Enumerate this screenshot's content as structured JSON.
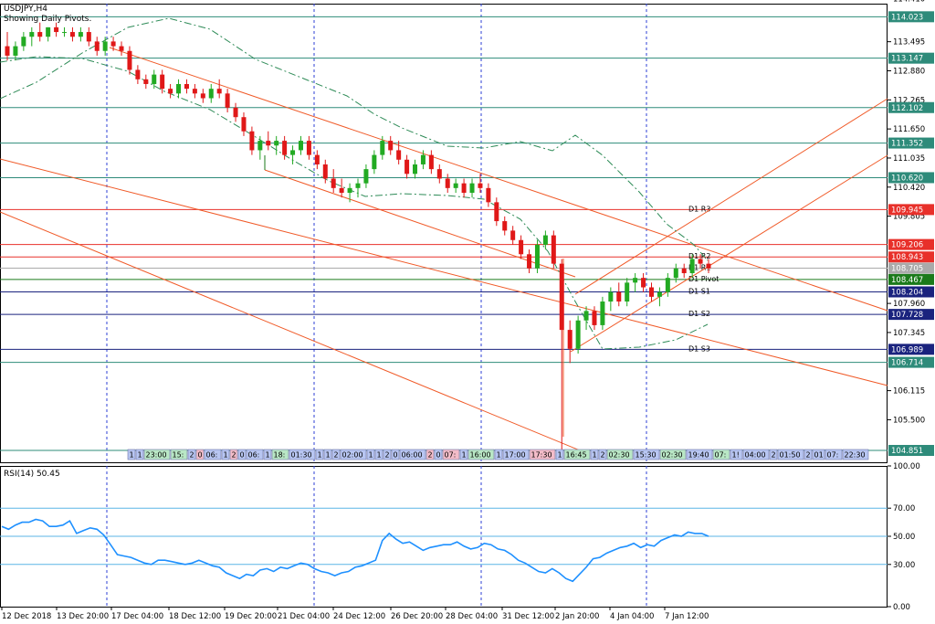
{
  "chart_title": "USDJPY,H4",
  "chart_subtitle": "Showing Daily Pivots.",
  "rsi_label": "RSI(14) 50.45",
  "chart_data": [
    {
      "type": "candlestick",
      "symbol": "USDJPY",
      "timeframe": "H4",
      "ylim": [
        104.6,
        114.3
      ],
      "price_ticks": [
        "114.410",
        "113.495",
        "112.880",
        "112.265",
        "111.650",
        "111.035",
        "110.420",
        "109.805",
        "107.960",
        "107.345",
        "106.115",
        "105.500"
      ],
      "price_tick_values": [
        114.41,
        113.495,
        112.88,
        112.265,
        111.65,
        111.035,
        110.42,
        109.805,
        107.96,
        107.345,
        106.115,
        105.5
      ],
      "x_ticks": [
        "12 Dec 2018",
        "13 Dec 20:00",
        "17 Dec 04:00",
        "18 Dec 12:00",
        "19 Dec 20:00",
        "21 Dec 04:00",
        "24 Dec 12:00",
        "26 Dec 20:00",
        "28 Dec 04:00",
        "31 Dec 12:00",
        "2 Jan 20:00",
        "4 Jan 04:00",
        "7 Jan 12:00"
      ],
      "levels": [
        {
          "value": 114.023,
          "label": "114.023",
          "color": "#2e8b7a"
        },
        {
          "value": 113.147,
          "label": "113.147",
          "color": "#2e8b7a"
        },
        {
          "value": 112.102,
          "label": "112.102",
          "color": "#2e8b7a"
        },
        {
          "value": 111.352,
          "label": "111.352",
          "color": "#2e8b7a"
        },
        {
          "value": 110.62,
          "label": "110.620",
          "color": "#2e8b7a"
        },
        {
          "value": 109.945,
          "label": "109.945",
          "color": "#e8302a",
          "pivot": "D1  R3"
        },
        {
          "value": 109.206,
          "label": "109.206",
          "color": "#e8302a"
        },
        {
          "value": 108.943,
          "label": "108.943",
          "color": "#e8302a",
          "pivot": "D1  R2"
        },
        {
          "value": 108.705,
          "label": "108.705",
          "color": "#aaaaaa",
          "pivot": "D1  R1"
        },
        {
          "value": 108.467,
          "label": "108.467",
          "color": "#1a7a1a",
          "pivot": "D1  Pivot"
        },
        {
          "value": 108.204,
          "label": "108.204",
          "color": "#1a237e",
          "pivot": "D1  S1"
        },
        {
          "value": 107.728,
          "label": "107.728",
          "color": "#1a237e",
          "pivot": "D1  S2"
        },
        {
          "value": 106.989,
          "label": "106.989",
          "color": "#1a237e",
          "pivot": "D1  S3"
        },
        {
          "value": 106.714,
          "label": "106.714",
          "color": "#2e8b7a"
        },
        {
          "value": 104.851,
          "label": "104.851",
          "color": "#2e8b7a"
        }
      ],
      "candles": [
        {
          "o": 113.4,
          "h": 113.7,
          "l": 113.1,
          "c": 113.2
        },
        {
          "o": 113.2,
          "h": 113.5,
          "l": 113.1,
          "c": 113.4
        },
        {
          "o": 113.4,
          "h": 113.7,
          "l": 113.3,
          "c": 113.6
        },
        {
          "o": 113.6,
          "h": 113.8,
          "l": 113.4,
          "c": 113.7
        },
        {
          "o": 113.7,
          "h": 113.9,
          "l": 113.5,
          "c": 113.6
        },
        {
          "o": 113.6,
          "h": 113.8,
          "l": 113.5,
          "c": 113.8
        },
        {
          "o": 113.8,
          "h": 113.9,
          "l": 113.6,
          "c": 113.7
        },
        {
          "o": 113.7,
          "h": 113.8,
          "l": 113.6,
          "c": 113.7
        },
        {
          "o": 113.7,
          "h": 113.8,
          "l": 113.5,
          "c": 113.6
        },
        {
          "o": 113.6,
          "h": 113.8,
          "l": 113.5,
          "c": 113.7
        },
        {
          "o": 113.7,
          "h": 113.8,
          "l": 113.4,
          "c": 113.5
        },
        {
          "o": 113.5,
          "h": 113.6,
          "l": 113.2,
          "c": 113.3
        },
        {
          "o": 113.3,
          "h": 113.6,
          "l": 113.2,
          "c": 113.5
        },
        {
          "o": 113.5,
          "h": 113.6,
          "l": 113.3,
          "c": 113.4
        },
        {
          "o": 113.4,
          "h": 113.5,
          "l": 113.2,
          "c": 113.3
        },
        {
          "o": 113.3,
          "h": 113.4,
          "l": 112.8,
          "c": 112.9
        },
        {
          "o": 112.9,
          "h": 113.0,
          "l": 112.6,
          "c": 112.7
        },
        {
          "o": 112.7,
          "h": 112.8,
          "l": 112.5,
          "c": 112.6
        },
        {
          "o": 112.6,
          "h": 112.9,
          "l": 112.5,
          "c": 112.8
        },
        {
          "o": 112.8,
          "h": 112.9,
          "l": 112.4,
          "c": 112.5
        },
        {
          "o": 112.5,
          "h": 112.6,
          "l": 112.3,
          "c": 112.4
        },
        {
          "o": 112.4,
          "h": 112.7,
          "l": 112.3,
          "c": 112.6
        },
        {
          "o": 112.6,
          "h": 112.7,
          "l": 112.4,
          "c": 112.5
        },
        {
          "o": 112.5,
          "h": 112.6,
          "l": 112.3,
          "c": 112.4
        },
        {
          "o": 112.4,
          "h": 112.5,
          "l": 112.2,
          "c": 112.3
        },
        {
          "o": 112.3,
          "h": 112.6,
          "l": 112.2,
          "c": 112.5
        },
        {
          "o": 112.5,
          "h": 112.7,
          "l": 112.3,
          "c": 112.4
        },
        {
          "o": 112.4,
          "h": 112.5,
          "l": 112.0,
          "c": 112.1
        },
        {
          "o": 112.1,
          "h": 112.2,
          "l": 111.8,
          "c": 111.9
        },
        {
          "o": 111.9,
          "h": 112.0,
          "l": 111.5,
          "c": 111.6
        },
        {
          "o": 111.6,
          "h": 111.7,
          "l": 111.1,
          "c": 111.2
        },
        {
          "o": 111.2,
          "h": 111.5,
          "l": 111.0,
          "c": 111.4
        },
        {
          "o": 111.4,
          "h": 111.6,
          "l": 111.2,
          "c": 111.3
        },
        {
          "o": 111.3,
          "h": 111.5,
          "l": 111.1,
          "c": 111.4
        },
        {
          "o": 111.4,
          "h": 111.5,
          "l": 111.0,
          "c": 111.1
        },
        {
          "o": 111.1,
          "h": 111.3,
          "l": 110.9,
          "c": 111.2
        },
        {
          "o": 111.2,
          "h": 111.5,
          "l": 111.1,
          "c": 111.4
        },
        {
          "o": 111.4,
          "h": 111.5,
          "l": 111.0,
          "c": 111.1
        },
        {
          "o": 111.1,
          "h": 111.2,
          "l": 110.8,
          "c": 110.9
        },
        {
          "o": 110.9,
          "h": 111.0,
          "l": 110.5,
          "c": 110.6
        },
        {
          "o": 110.6,
          "h": 110.8,
          "l": 110.3,
          "c": 110.4
        },
        {
          "o": 110.4,
          "h": 110.6,
          "l": 110.2,
          "c": 110.3
        },
        {
          "o": 110.3,
          "h": 110.5,
          "l": 110.1,
          "c": 110.4
        },
        {
          "o": 110.4,
          "h": 110.6,
          "l": 110.2,
          "c": 110.5
        },
        {
          "o": 110.5,
          "h": 110.9,
          "l": 110.4,
          "c": 110.8
        },
        {
          "o": 110.8,
          "h": 111.2,
          "l": 110.7,
          "c": 111.1
        },
        {
          "o": 111.1,
          "h": 111.5,
          "l": 111.0,
          "c": 111.4
        },
        {
          "o": 111.4,
          "h": 111.5,
          "l": 111.1,
          "c": 111.2
        },
        {
          "o": 111.2,
          "h": 111.4,
          "l": 110.9,
          "c": 111.0
        },
        {
          "o": 111.0,
          "h": 111.1,
          "l": 110.6,
          "c": 110.7
        },
        {
          "o": 110.7,
          "h": 111.0,
          "l": 110.6,
          "c": 110.9
        },
        {
          "o": 110.9,
          "h": 111.2,
          "l": 110.8,
          "c": 111.1
        },
        {
          "o": 111.1,
          "h": 111.2,
          "l": 110.7,
          "c": 110.8
        },
        {
          "o": 110.8,
          "h": 110.9,
          "l": 110.5,
          "c": 110.6
        },
        {
          "o": 110.6,
          "h": 110.7,
          "l": 110.3,
          "c": 110.4
        },
        {
          "o": 110.4,
          "h": 110.6,
          "l": 110.3,
          "c": 110.5
        },
        {
          "o": 110.5,
          "h": 110.6,
          "l": 110.2,
          "c": 110.3
        },
        {
          "o": 110.3,
          "h": 110.6,
          "l": 110.2,
          "c": 110.5
        },
        {
          "o": 110.5,
          "h": 110.7,
          "l": 110.3,
          "c": 110.4
        },
        {
          "o": 110.4,
          "h": 110.5,
          "l": 110.0,
          "c": 110.1
        },
        {
          "o": 110.1,
          "h": 110.2,
          "l": 109.6,
          "c": 109.7
        },
        {
          "o": 109.7,
          "h": 109.8,
          "l": 109.4,
          "c": 109.5
        },
        {
          "o": 109.5,
          "h": 109.6,
          "l": 109.2,
          "c": 109.3
        },
        {
          "o": 109.3,
          "h": 109.4,
          "l": 108.9,
          "c": 109.0
        },
        {
          "o": 109.0,
          "h": 109.1,
          "l": 108.6,
          "c": 108.7
        },
        {
          "o": 108.7,
          "h": 109.3,
          "l": 108.6,
          "c": 109.2
        },
        {
          "o": 109.2,
          "h": 109.5,
          "l": 109.1,
          "c": 109.4
        },
        {
          "o": 109.4,
          "h": 109.5,
          "l": 108.7,
          "c": 108.8
        },
        {
          "o": 108.8,
          "h": 108.9,
          "l": 104.85,
          "c": 107.4
        },
        {
          "o": 107.4,
          "h": 107.6,
          "l": 106.7,
          "c": 107.0
        },
        {
          "o": 107.0,
          "h": 107.7,
          "l": 106.9,
          "c": 107.6
        },
        {
          "o": 107.6,
          "h": 107.9,
          "l": 107.4,
          "c": 107.8
        },
        {
          "o": 107.8,
          "h": 107.9,
          "l": 107.4,
          "c": 107.5
        },
        {
          "o": 107.5,
          "h": 108.1,
          "l": 107.4,
          "c": 108.0
        },
        {
          "o": 108.0,
          "h": 108.3,
          "l": 107.8,
          "c": 108.2
        },
        {
          "o": 108.2,
          "h": 108.4,
          "l": 107.9,
          "c": 108.0
        },
        {
          "o": 108.0,
          "h": 108.5,
          "l": 107.9,
          "c": 108.4
        },
        {
          "o": 108.4,
          "h": 108.6,
          "l": 108.2,
          "c": 108.5
        },
        {
          "o": 108.5,
          "h": 108.6,
          "l": 108.2,
          "c": 108.3
        },
        {
          "o": 108.3,
          "h": 108.4,
          "l": 108.0,
          "c": 108.1
        },
        {
          "o": 108.1,
          "h": 108.3,
          "l": 107.9,
          "c": 108.2
        },
        {
          "o": 108.2,
          "h": 108.6,
          "l": 108.1,
          "c": 108.5
        },
        {
          "o": 108.5,
          "h": 108.8,
          "l": 108.4,
          "c": 108.7
        },
        {
          "o": 108.7,
          "h": 108.8,
          "l": 108.5,
          "c": 108.6
        },
        {
          "o": 108.6,
          "h": 109.0,
          "l": 108.5,
          "c": 108.9
        },
        {
          "o": 108.9,
          "h": 109.0,
          "l": 108.7,
          "c": 108.8
        },
        {
          "o": 108.8,
          "h": 108.9,
          "l": 108.6,
          "c": 108.7
        }
      ],
      "session_boxes": [
        {
          "text": "1",
          "type": "b"
        },
        {
          "text": "1",
          "type": "b"
        },
        {
          "text": "23:00",
          "type": "g"
        },
        {
          "text": "15:",
          "type": "g"
        },
        {
          "text": "2",
          "type": "b"
        },
        {
          "text": "0",
          "type": "p"
        },
        {
          "text": "06:",
          "type": "b"
        },
        {
          "text": "1",
          "type": "b"
        },
        {
          "text": "2",
          "type": "p"
        },
        {
          "text": "0",
          "type": "b"
        },
        {
          "text": "06:",
          "type": "b"
        },
        {
          "text": "1",
          "type": "b"
        },
        {
          "text": "18:",
          "type": "g"
        },
        {
          "text": "01:30",
          "type": "b"
        },
        {
          "text": "1",
          "type": "b"
        },
        {
          "text": "1",
          "type": "b"
        },
        {
          "text": "2",
          "type": "b"
        },
        {
          "text": "02:00",
          "type": "b"
        },
        {
          "text": "1",
          "type": "b"
        },
        {
          "text": "1",
          "type": "b"
        },
        {
          "text": "2",
          "type": "b"
        },
        {
          "text": "0",
          "type": "b"
        },
        {
          "text": "06:00",
          "type": "b"
        },
        {
          "text": "2",
          "type": "p"
        },
        {
          "text": "0",
          "type": "b"
        },
        {
          "text": "07:",
          "type": "p"
        },
        {
          "text": "1",
          "type": "b"
        },
        {
          "text": "16:00",
          "type": "g"
        },
        {
          "text": "1",
          "type": "b"
        },
        {
          "text": "17:00",
          "type": "b"
        },
        {
          "text": "17:30",
          "type": "p"
        },
        {
          "text": "1",
          "type": "b"
        },
        {
          "text": "16:45",
          "type": "g"
        },
        {
          "text": "1",
          "type": "b"
        },
        {
          "text": "2",
          "type": "b"
        },
        {
          "text": "02:30",
          "type": "g"
        },
        {
          "text": "15:30",
          "type": "b"
        },
        {
          "text": "02:30",
          "type": "g"
        },
        {
          "text": "19:40",
          "type": "b"
        },
        {
          "text": "07:",
          "type": "g"
        },
        {
          "text": "1!",
          "type": "b"
        },
        {
          "text": "04:00",
          "type": "b"
        },
        {
          "text": "2",
          "type": "b"
        },
        {
          "text": "01:50",
          "type": "b"
        },
        {
          "text": "2",
          "type": "b"
        },
        {
          "text": "01",
          "type": "b"
        },
        {
          "text": "07:",
          "type": "b"
        },
        {
          "text": "22:30",
          "type": "b"
        }
      ]
    },
    {
      "type": "line",
      "name": "RSI(14)",
      "ylim": [
        0,
        100
      ],
      "y_ticks": [
        "100.00",
        "70.00",
        "50.00",
        "30.00",
        "0.00"
      ],
      "y_tick_values": [
        100,
        70,
        50,
        30,
        0
      ],
      "values": [
        57,
        55,
        58,
        60,
        60,
        62,
        61,
        57,
        57,
        58,
        61,
        52,
        54,
        56,
        55,
        51,
        44,
        37,
        36,
        35,
        33,
        31,
        30,
        33,
        33,
        32,
        31,
        30,
        31,
        33,
        31,
        29,
        28,
        24,
        22,
        20,
        23,
        22,
        26,
        27,
        25,
        28,
        27,
        29,
        31,
        30,
        27,
        25,
        24,
        22,
        24,
        25,
        28,
        29,
        31,
        33,
        47,
        52,
        48,
        45,
        46,
        43,
        40,
        42,
        43,
        44,
        44,
        46,
        43,
        41,
        42,
        45,
        44,
        41,
        40,
        37,
        33,
        31,
        28,
        25,
        24,
        27,
        24,
        20,
        18,
        23,
        28,
        34,
        35,
        38,
        40,
        42,
        43,
        45,
        42,
        44,
        43,
        47,
        49,
        51,
        50,
        53,
        52,
        52,
        50
      ]
    }
  ]
}
